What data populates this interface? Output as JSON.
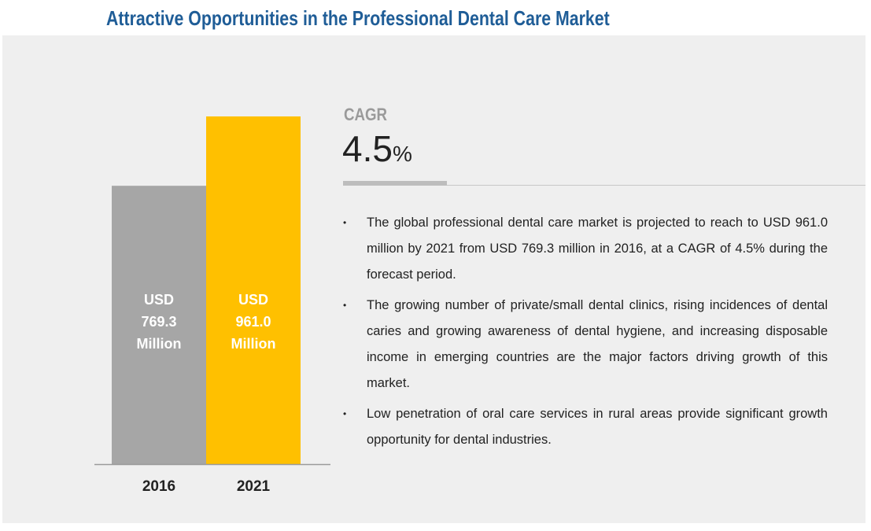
{
  "title": "Attractive Opportunities in the Professional Dental Care Market",
  "chart_data": {
    "type": "bar",
    "title": "",
    "categories": [
      "2016",
      "2021"
    ],
    "values": [
      769.3,
      961.0
    ],
    "unit": "USD Million",
    "data_labels": [
      [
        "USD",
        "769.3",
        "Million"
      ],
      [
        "USD",
        "961.0",
        "Million"
      ]
    ],
    "colors": [
      "#a6a6a6",
      "#ffc000"
    ],
    "label_color": "#ffffff",
    "ylim": [
      0,
      961.0
    ],
    "grid": false,
    "legend": "none"
  },
  "cagr": {
    "label": "CAGR",
    "value": "4.5",
    "unit": "%"
  },
  "bullets": [
    "The global professional dental care market is projected to reach to USD 961.0 million by 2021 from USD 769.3 million in 2016, at a CAGR of 4.5% during the forecast period.",
    "The growing number of private/small dental clinics, rising incidences of dental caries and growing awareness of dental hygiene, and increasing disposable income in emerging countries are the major factors driving growth of this market.",
    "Low penetration of oral care services in rural areas provide significant growth opportunity for dental industries."
  ]
}
